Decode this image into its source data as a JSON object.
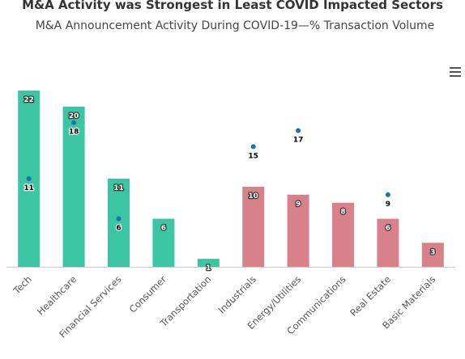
{
  "colors": {
    "least_impacted": "#3cc5a2",
    "most_impacted": "#d9818a",
    "marker": "#1f6fb2",
    "axis": "#cccccc"
  },
  "menu": {
    "icon": "hamburger-menu-icon"
  },
  "chart_data": {
    "type": "bar",
    "title": "M&A Activity was Strongest in Least COVID Impacted Sectors",
    "subtitle": "M&A Announcement Activity During COVID-19—% Transaction Volume",
    "xlabel": "",
    "ylabel": "",
    "ylim": [
      0,
      22
    ],
    "grid": false,
    "legend": "none",
    "categories": [
      "Tech",
      "Healthcare",
      "Financial Services",
      "Consumer",
      "Transportation",
      "Industrials",
      "Energy/Utilities",
      "Communications",
      "Real Estate",
      "Basic Materials"
    ],
    "series": [
      {
        "type": "bar",
        "values": [
          22,
          20,
          11,
          6,
          1,
          10,
          9,
          8,
          6,
          3
        ],
        "colors": [
          "#3cc5a2",
          "#3cc5a2",
          "#3cc5a2",
          "#3cc5a2",
          "#3cc5a2",
          "#d9818a",
          "#d9818a",
          "#d9818a",
          "#d9818a",
          "#d9818a"
        ]
      },
      {
        "type": "scatter",
        "values": [
          11,
          18,
          6,
          null,
          null,
          15,
          17,
          null,
          9,
          null
        ],
        "color": "#1f6fb2"
      }
    ]
  }
}
